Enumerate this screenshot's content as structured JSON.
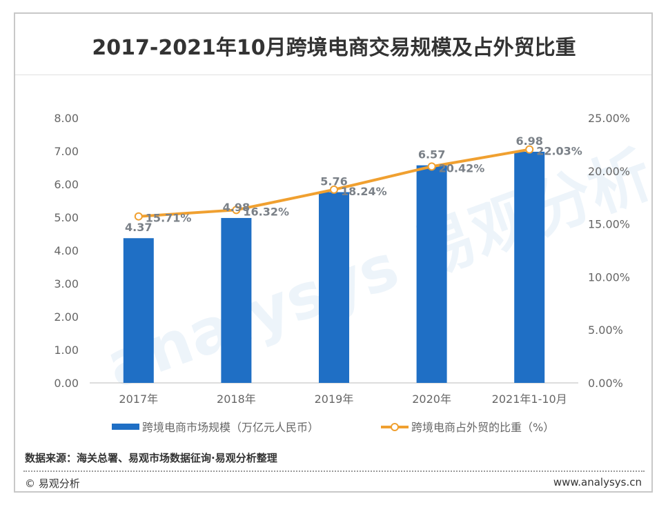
{
  "chart_data": {
    "type": "bar+line",
    "title": "2017-2021年10月跨境电商交易规模及占外贸比重",
    "categories": [
      "2017年",
      "2018年",
      "2019年",
      "2020年",
      "2021年1-10月"
    ],
    "series": [
      {
        "name": "跨境电商市场规模（万亿元人民币）",
        "type": "bar",
        "axis": "left",
        "color": "#1f6fc5",
        "values": [
          4.37,
          4.98,
          5.76,
          6.57,
          6.98
        ],
        "labels": [
          "4.37",
          "4.98",
          "5.76",
          "6.57",
          "6.98"
        ]
      },
      {
        "name": "跨境电商占外贸的比重（%）",
        "type": "line",
        "axis": "right",
        "color": "#f0a030",
        "values": [
          15.71,
          16.32,
          18.24,
          20.42,
          22.03
        ],
        "labels": [
          "15.71%",
          "16.32%",
          "18.24%",
          "20.42%",
          "22.03%"
        ]
      }
    ],
    "left_axis": {
      "ylim": [
        0,
        8
      ],
      "ticks": [
        "0.00",
        "1.00",
        "2.00",
        "3.00",
        "4.00",
        "5.00",
        "6.00",
        "7.00",
        "8.00"
      ]
    },
    "right_axis": {
      "ylim": [
        0,
        25
      ],
      "ticks": [
        "0.00%",
        "5.00%",
        "10.00%",
        "15.00%",
        "20.00%",
        "25.00%"
      ]
    },
    "grid": false,
    "legend": "bottom"
  },
  "source": "数据来源：海关总署、易观市场数据征询·易观分析整理",
  "copyright": "© 易观分析",
  "website": "www.analysys.cn"
}
